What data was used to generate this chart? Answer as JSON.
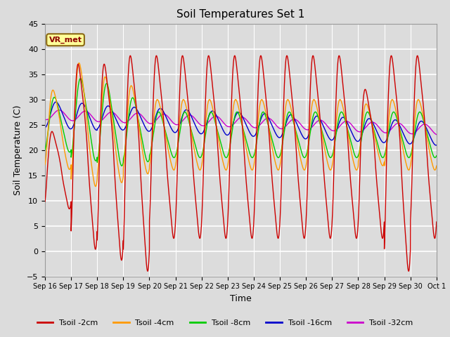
{
  "title": "Soil Temperatures Set 1",
  "xlabel": "Time",
  "ylabel": "Soil Temperature (C)",
  "ylim": [
    -5,
    45
  ],
  "xlim": [
    0,
    15
  ],
  "background_color": "#dcdcdc",
  "plot_bg_color": "#dcdcdc",
  "grid_color": "white",
  "annotation_text": "VR_met",
  "annotation_bg": "#ffff99",
  "annotation_border": "#8B6914",
  "xtick_labels": [
    "Sep 16",
    "Sep 17",
    "Sep 18",
    "Sep 19",
    "Sep 20",
    "Sep 21",
    "Sep 22",
    "Sep 23",
    "Sep 24",
    "Sep 25",
    "Sep 26",
    "Sep 27",
    "Sep 28",
    "Sep 29",
    "Sep 30",
    "Oct 1"
  ],
  "legend_entries": [
    "Tsoil -2cm",
    "Tsoil -4cm",
    "Tsoil -8cm",
    "Tsoil -16cm",
    "Tsoil -32cm"
  ],
  "line_colors": [
    "#cc0000",
    "#ff9900",
    "#00cc00",
    "#0000cc",
    "#cc00cc"
  ]
}
